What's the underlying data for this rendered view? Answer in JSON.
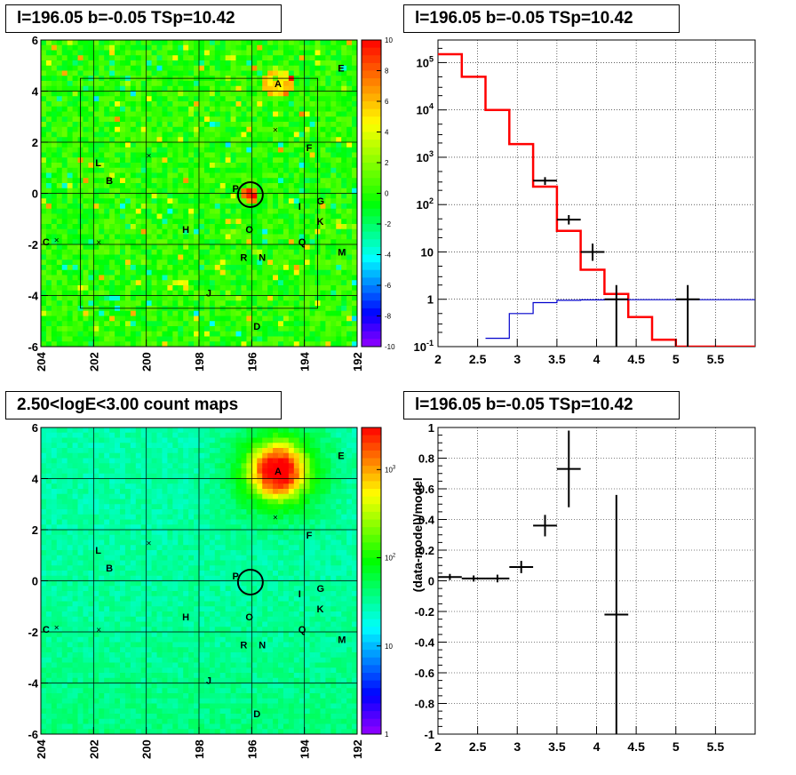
{
  "titles": {
    "map_residual": "l=196.05 b=-0.05 TSp=10.42",
    "spectrum": "l=196.05 b=-0.05 TSp=10.42",
    "map_counts": "2.50<logE<3.00 count maps",
    "residual_ratio": "l=196.05 b=-0.05 TSp=10.42"
  },
  "chart_data": [
    {
      "type": "heatmap",
      "title": "l=196.05 b=-0.05 TSp=10.42",
      "x_ticks": [
        "204",
        "202",
        "200",
        "198",
        "196",
        "194",
        "192"
      ],
      "y_ticks": [
        "6",
        "4",
        "2",
        "0",
        "-2",
        "-4",
        "-6"
      ],
      "xlim": [
        204,
        192
      ],
      "ylim": [
        -6,
        6
      ],
      "colorbar": {
        "ticks": [
          "10",
          "8",
          "6",
          "4",
          "2",
          "0",
          "-2",
          "-4",
          "-6",
          "-8",
          "-10"
        ],
        "range": [
          -10,
          10
        ]
      },
      "sources": [
        {
          "label": "A",
          "l": 195.0,
          "b": 4.3
        },
        {
          "label": "B",
          "l": 201.4,
          "b": 0.5
        },
        {
          "label": "C",
          "l": 203.8,
          "b": -1.9
        },
        {
          "label": "D",
          "l": 195.8,
          "b": -5.2
        },
        {
          "label": "E",
          "l": 192.6,
          "b": 4.9
        },
        {
          "label": "F",
          "l": 193.8,
          "b": 1.8
        },
        {
          "label": "G",
          "l": 193.4,
          "b": -0.3
        },
        {
          "label": "H",
          "l": 198.5,
          "b": -1.4
        },
        {
          "label": "I",
          "l": 194.1,
          "b": -0.5
        },
        {
          "label": "J",
          "l": 197.6,
          "b": -3.9
        },
        {
          "label": "K",
          "l": 193.4,
          "b": -1.1
        },
        {
          "label": "L",
          "l": 201.8,
          "b": 1.2
        },
        {
          "label": "M",
          "l": 192.6,
          "b": -2.3
        },
        {
          "label": "N",
          "l": 195.6,
          "b": -2.5
        },
        {
          "label": "O",
          "l": 196.1,
          "b": -1.4
        },
        {
          "label": "P",
          "l": 196.6,
          "b": 0.2
        },
        {
          "label": "Q",
          "l": 194.1,
          "b": -1.9
        },
        {
          "label": "R",
          "l": 196.3,
          "b": -2.5
        }
      ]
    },
    {
      "type": "line",
      "title": "l=196.05 b=-0.05 TSp=10.42",
      "log_y": true,
      "xlim": [
        2,
        6
      ],
      "ylim": [
        0.1,
        300000
      ],
      "x_ticks": [
        "2",
        "2.5",
        "3",
        "3.5",
        "4",
        "4.5",
        "5",
        "5.5"
      ],
      "y_ticks": [
        "10^-1",
        "1",
        "10",
        "10^2",
        "10^3",
        "10^4",
        "10^5"
      ],
      "series": [
        {
          "type": "step",
          "color": "#ff0000",
          "edges": [
            2,
            2.3,
            2.6,
            2.9,
            3.2,
            3.5,
            3.8,
            4.1,
            4.4,
            4.7,
            5.0,
            5.3,
            5.6,
            5.9,
            6.0
          ],
          "values": [
            150000,
            50000,
            10000,
            1900,
            240,
            28,
            4.2,
            1.3,
            0.42,
            0.14,
            0.1,
            0.1,
            0.1,
            0.1
          ]
        },
        {
          "type": "step",
          "color": "#0000cc",
          "edges": [
            2.6,
            2.9,
            3.2,
            3.5,
            3.8,
            4.1,
            4.4,
            4.7,
            5.0,
            5.3,
            5.6,
            5.9,
            6.0
          ],
          "values": [
            0.15,
            0.5,
            0.85,
            0.95,
            0.97,
            0.98,
            0.98,
            0.98,
            0.98,
            0.98,
            0.98,
            0.98
          ]
        },
        {
          "type": "errorbar",
          "color": "#000000",
          "points": [
            {
              "x": 3.35,
              "y": 320,
              "xerr": 0.15,
              "ylo": 260,
              "yhi": 380
            },
            {
              "x": 3.65,
              "y": 48,
              "xerr": 0.15,
              "ylo": 38,
              "yhi": 60
            },
            {
              "x": 3.95,
              "y": 10,
              "xerr": 0.15,
              "ylo": 6.5,
              "yhi": 15
            },
            {
              "x": 4.25,
              "y": 1,
              "xerr": 0.15,
              "ylo": 0.08,
              "yhi": 2
            },
            {
              "x": 5.15,
              "y": 1,
              "xerr": 0.15,
              "ylo": 0.08,
              "yhi": 2
            }
          ]
        }
      ]
    },
    {
      "type": "heatmap",
      "title": "2.50<logE<3.00 count maps",
      "x_ticks": [
        "204",
        "202",
        "200",
        "198",
        "196",
        "194",
        "192"
      ],
      "y_ticks": [
        "6",
        "4",
        "2",
        "0",
        "-2",
        "-4",
        "-6"
      ],
      "xlim": [
        204,
        192
      ],
      "ylim": [
        -6,
        6
      ],
      "colorbar": {
        "log": true,
        "ticks": [
          "10^3",
          "10^2",
          "10",
          "1"
        ],
        "range": [
          1,
          3000
        ]
      }
    },
    {
      "type": "scatter",
      "title": "l=196.05 b=-0.05 TSp=10.42",
      "ylabel": "(data-model)/model",
      "xlim": [
        2,
        6
      ],
      "ylim": [
        -1,
        1
      ],
      "x_ticks": [
        "2",
        "2.5",
        "3",
        "3.5",
        "4",
        "4.5",
        "5",
        "5.5"
      ],
      "y_ticks": [
        "1",
        "0.8",
        "0.6",
        "0.4",
        "0.2",
        "0",
        "-0.2",
        "-0.4",
        "-0.6",
        "-0.8",
        "-1"
      ],
      "points": [
        {
          "x": 2.15,
          "y": 0.025,
          "xerr": 0.15,
          "yerr": 0.02
        },
        {
          "x": 2.45,
          "y": 0.015,
          "xerr": 0.15,
          "yerr": 0.02
        },
        {
          "x": 2.75,
          "y": 0.015,
          "xerr": 0.15,
          "yerr": 0.025
        },
        {
          "x": 3.05,
          "y": 0.09,
          "xerr": 0.15,
          "yerr": 0.04
        },
        {
          "x": 3.35,
          "y": 0.36,
          "xerr": 0.15,
          "yerr": 0.07
        },
        {
          "x": 3.65,
          "y": 0.73,
          "xerr": 0.15,
          "yerr": 0.25
        },
        {
          "x": 4.25,
          "y": -0.22,
          "xerr": 0.15,
          "ylo": -1,
          "yhi": 0.56
        }
      ]
    }
  ]
}
